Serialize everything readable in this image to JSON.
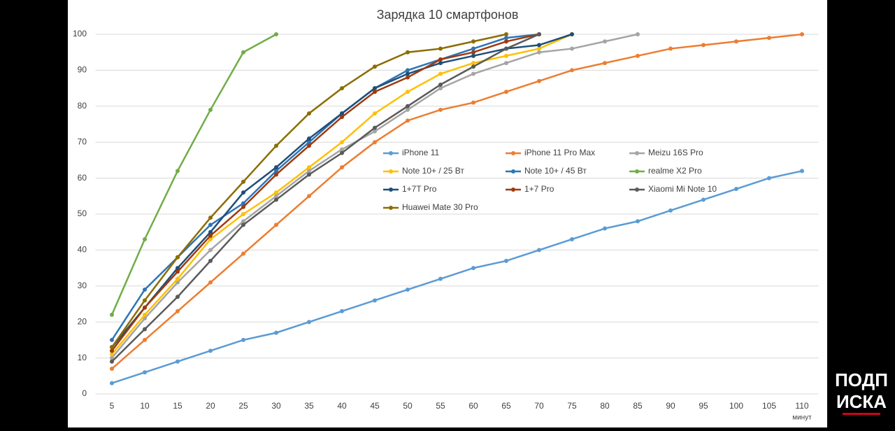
{
  "chart_data": {
    "type": "line",
    "title": "Зарядка 10 смартфонов",
    "x_label": "минут",
    "annotations": [
      "ПОДП",
      "ИСКА"
    ],
    "x": [
      5,
      10,
      15,
      20,
      25,
      30,
      35,
      40,
      45,
      50,
      55,
      60,
      65,
      70,
      75,
      80,
      85,
      90,
      95,
      100,
      105,
      110
    ],
    "xlim": [
      2.5,
      112.5
    ],
    "xticks": [
      5,
      10,
      15,
      20,
      25,
      30,
      35,
      40,
      45,
      50,
      55,
      60,
      65,
      70,
      75,
      80,
      85,
      90,
      95,
      100,
      105,
      110
    ],
    "ylim": [
      0,
      100
    ],
    "yticks": [
      0,
      10,
      20,
      30,
      40,
      50,
      60,
      70,
      80,
      90,
      100
    ],
    "grid": true,
    "legend": "center",
    "series": [
      {
        "name": "iPhone 11",
        "color": "#5b9bd5",
        "values": [
          3,
          6,
          9,
          12,
          15,
          17,
          20,
          23,
          26,
          29,
          32,
          35,
          37,
          40,
          43,
          46,
          48,
          51,
          54,
          57,
          60,
          62
        ]
      },
      {
        "name": "iPhone 11 Pro Max",
        "color": "#ed7d31",
        "values": [
          7,
          15,
          23,
          31,
          39,
          47,
          55,
          63,
          70,
          76,
          79,
          81,
          84,
          87,
          90,
          92,
          94,
          96,
          97,
          98,
          99,
          100
        ]
      },
      {
        "name": "Meizu 16S Pro",
        "color": "#a5a5a5",
        "values": [
          10,
          21,
          31,
          40,
          48,
          55,
          62,
          68,
          73,
          79,
          85,
          89,
          92,
          95,
          96,
          98,
          100,
          null,
          null,
          null,
          null,
          null
        ]
      },
      {
        "name": "Note 10+ / 25 Вт",
        "color": "#ffc000",
        "values": [
          11,
          22,
          32,
          43,
          50,
          56,
          63,
          70,
          78,
          84,
          89,
          92,
          94,
          96,
          100,
          null,
          null,
          null,
          null,
          null,
          null,
          null
        ]
      },
      {
        "name": "Note 10+ / 45 Вт",
        "color": "#2e75b6",
        "values": [
          15,
          29,
          38,
          47,
          53,
          62,
          70,
          78,
          85,
          90,
          93,
          96,
          99,
          100,
          null,
          null,
          null,
          null,
          null,
          null,
          null,
          null
        ]
      },
      {
        "name": "realme X2 Pro",
        "color": "#70ad47",
        "values": [
          22,
          43,
          62,
          79,
          95,
          100,
          null,
          null,
          null,
          null,
          null,
          null,
          null,
          null,
          null,
          null,
          null,
          null,
          null,
          null,
          null,
          null
        ]
      },
      {
        "name": "1+7T Pro",
        "color": "#1f4e79",
        "values": [
          13,
          24,
          35,
          45,
          56,
          63,
          71,
          78,
          85,
          89,
          92,
          94,
          96,
          97,
          100,
          null,
          null,
          null,
          null,
          null,
          null,
          null
        ]
      },
      {
        "name": "1+7 Pro",
        "color": "#9e3a0e",
        "values": [
          12,
          24,
          34,
          44,
          52,
          61,
          69,
          77,
          84,
          88,
          93,
          95,
          98,
          100,
          null,
          null,
          null,
          null,
          null,
          null,
          null,
          null
        ]
      },
      {
        "name": "Xiaomi Mi Note 10",
        "color": "#5a5a5a",
        "values": [
          9,
          18,
          27,
          37,
          47,
          54,
          61,
          67,
          74,
          80,
          86,
          91,
          96,
          100,
          null,
          null,
          null,
          null,
          null,
          null,
          null,
          null
        ]
      },
      {
        "name": "Huawei Mate 30 Pro",
        "color": "#8c6d00",
        "values": [
          13,
          26,
          38,
          49,
          59,
          69,
          78,
          85,
          91,
          95,
          96,
          98,
          100,
          null,
          null,
          null,
          null,
          null,
          null,
          null,
          null,
          null
        ]
      }
    ]
  }
}
